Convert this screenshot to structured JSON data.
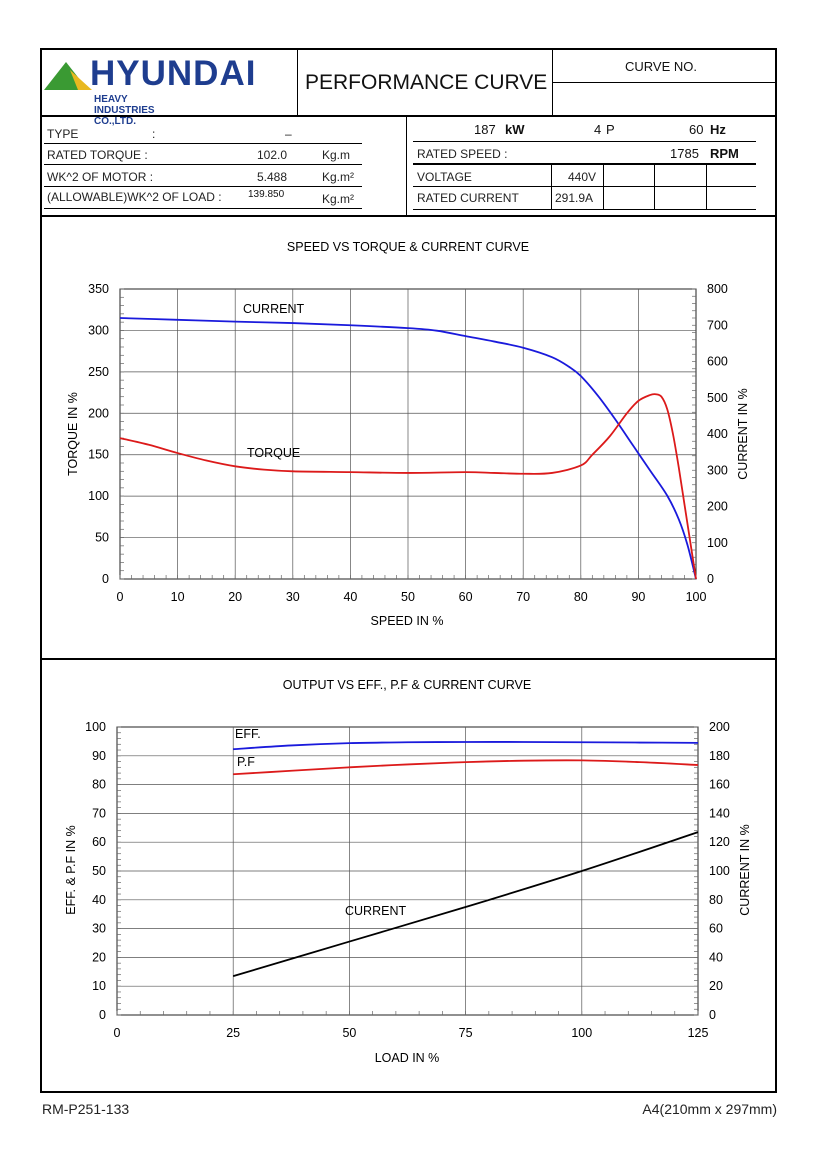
{
  "header": {
    "logo_text": "HYUNDAI",
    "logo_subtext": "HEAVY INDUSTRIES CO.,LTD.",
    "title": "PERFORMANCE CURVE",
    "curve_no_label": "CURVE NO.",
    "curve_no_value": ""
  },
  "specs_left": {
    "type_label": "TYPE",
    "type_colon": ":",
    "type_value": "–",
    "rated_torque_label": "RATED TORQUE :",
    "rated_torque_value": "102.0",
    "rated_torque_unit": "Kg.m",
    "wk2_motor_label": "WK^2 OF MOTOR :",
    "wk2_motor_value": "5.488",
    "wk2_motor_unit": "Kg.m²",
    "wk2_load_label": "(ALLOWABLE)WK^2 OF LOAD :",
    "wk2_load_value": "139.850",
    "wk2_load_unit": "Kg.m²"
  },
  "specs_right": {
    "power_value": "187",
    "power_unit": "kW",
    "poles_value": "4",
    "poles_unit": "P",
    "freq_value": "60",
    "freq_unit": "Hz",
    "rated_speed_label": "RATED SPEED :",
    "rated_speed_value": "1785",
    "rated_speed_unit": "RPM",
    "voltage_label": "VOLTAGE",
    "voltage_value": "440V",
    "rated_current_label": "RATED CURRENT",
    "rated_current_value": "291.9A"
  },
  "footer": {
    "doc_code": "RM-P251-133",
    "paper_size": "A4(210mm x 297mm)"
  },
  "colors": {
    "blue": "#1a1adc",
    "red": "#dc1a1a",
    "black": "#000000",
    "logo_blue": "#1e3d8f",
    "logo_green": "#3a9a33"
  },
  "chart_data": [
    {
      "type": "line",
      "title": "SPEED VS TORQUE & CURRENT CURVE",
      "xlabel": "SPEED IN %",
      "ylabel": "TORQUE IN %",
      "y2label": "CURRENT IN %",
      "xlim": [
        0,
        100
      ],
      "ylim": [
        0,
        350
      ],
      "y2lim": [
        0,
        800
      ],
      "xticks": [
        0,
        10,
        20,
        30,
        40,
        50,
        60,
        70,
        80,
        90,
        100
      ],
      "yticks": [
        0,
        50,
        100,
        150,
        200,
        250,
        300,
        350
      ],
      "y2ticks": [
        0,
        100,
        200,
        300,
        400,
        500,
        600,
        700,
        800
      ],
      "series": [
        {
          "name": "CURRENT",
          "axis": "right",
          "color": "#1a1adc",
          "x": [
            0,
            10,
            20,
            30,
            40,
            50,
            55,
            60,
            65,
            70,
            75,
            78,
            80,
            83,
            86,
            89,
            92,
            95,
            97,
            98.5,
            100
          ],
          "values": [
            720,
            715,
            710,
            706,
            700,
            692,
            685,
            670,
            655,
            638,
            612,
            585,
            560,
            505,
            440,
            370,
            300,
            230,
            165,
            95,
            0
          ]
        },
        {
          "name": "TORQUE",
          "axis": "left",
          "color": "#dc1a1a",
          "x": [
            0,
            5,
            10,
            15,
            20,
            25,
            30,
            40,
            50,
            60,
            65,
            70,
            75,
            80,
            82,
            85,
            88,
            90,
            92,
            93,
            94,
            95,
            96,
            97,
            98,
            99,
            100
          ],
          "values": [
            170,
            162,
            152,
            143,
            136,
            132,
            130,
            129,
            128,
            129,
            128,
            127,
            128,
            137,
            150,
            172,
            200,
            215,
            222,
            223,
            220,
            205,
            175,
            135,
            90,
            45,
            0
          ]
        }
      ],
      "annotations": [
        "CURRENT",
        "TORQUE"
      ]
    },
    {
      "type": "line",
      "title": "OUTPUT VS EFF., P.F & CURRENT CURVE",
      "xlabel": "LOAD IN %",
      "ylabel": "EFF. & P.F IN %",
      "y2label": "CURRENT IN %",
      "xlim": [
        0,
        125
      ],
      "ylim": [
        0,
        100
      ],
      "y2lim": [
        0,
        200
      ],
      "xticks": [
        0,
        25,
        50,
        75,
        100,
        125
      ],
      "yticks": [
        0,
        10,
        20,
        30,
        40,
        50,
        60,
        70,
        80,
        90,
        100
      ],
      "y2ticks": [
        0,
        20,
        40,
        60,
        80,
        100,
        120,
        140,
        160,
        180,
        200
      ],
      "series": [
        {
          "name": "EFF.",
          "axis": "left",
          "color": "#1a1adc",
          "x": [
            25,
            37.5,
            50,
            62.5,
            75,
            87.5,
            100,
            112.5,
            125
          ],
          "values": [
            92.3,
            93.6,
            94.4,
            94.7,
            94.8,
            94.8,
            94.7,
            94.6,
            94.5
          ]
        },
        {
          "name": "P.F",
          "axis": "left",
          "color": "#dc1a1a",
          "x": [
            25,
            37.5,
            50,
            62.5,
            75,
            87.5,
            100,
            112.5,
            125
          ],
          "values": [
            83.6,
            84.8,
            86.0,
            87.0,
            87.8,
            88.3,
            88.4,
            87.8,
            86.8
          ]
        },
        {
          "name": "CURRENT",
          "axis": "right",
          "color": "#000000",
          "x": [
            25,
            50,
            75,
            100,
            125
          ],
          "values": [
            27,
            51,
            75,
            100,
            127
          ]
        }
      ],
      "annotations": [
        "EFF.",
        "P.F",
        "CURRENT"
      ]
    }
  ]
}
